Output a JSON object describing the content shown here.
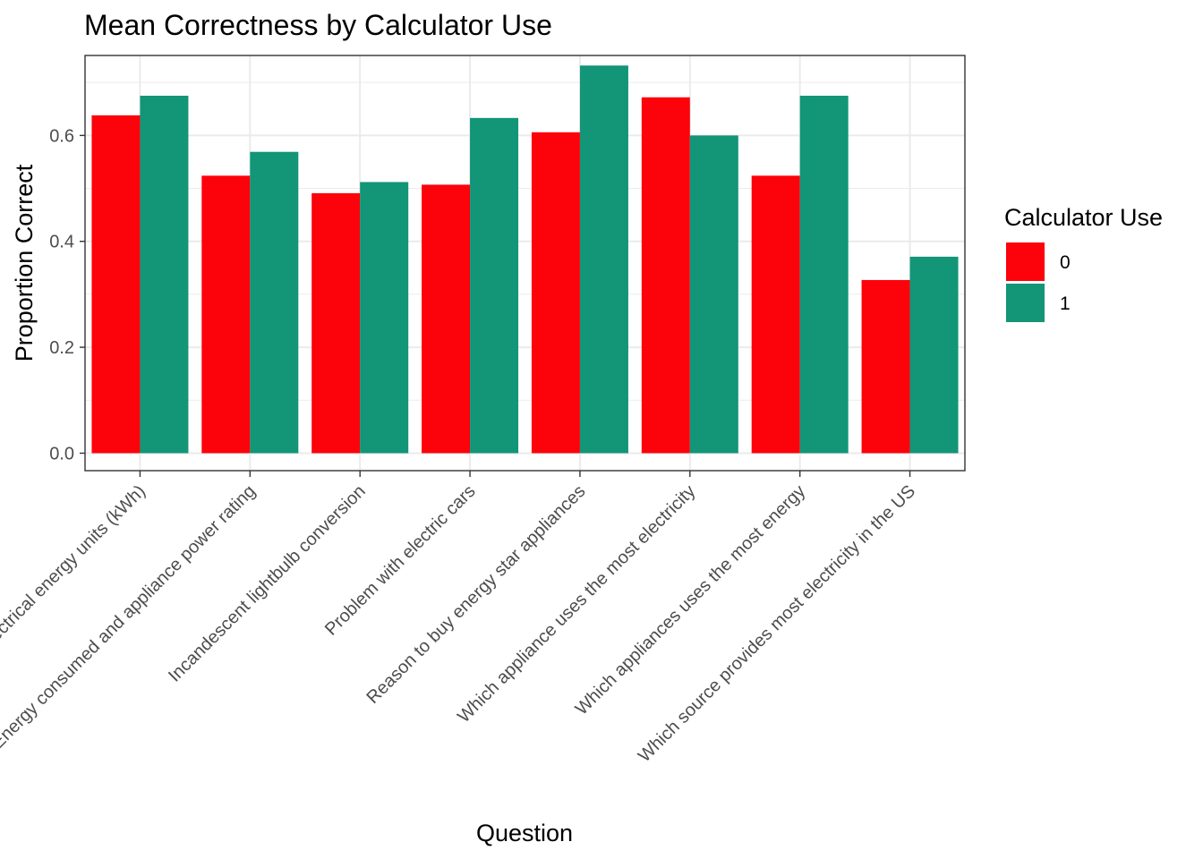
{
  "chart_data": {
    "type": "bar",
    "title": "Mean Correctness by Calculator Use",
    "xlabel": "Question",
    "ylabel": "Proportion Correct",
    "ylim": [
      -0.033,
      0.751
    ],
    "yticks": [
      "0.0",
      "0.2",
      "0.4",
      "0.6"
    ],
    "ytick_values": [
      0.0,
      0.2,
      0.4,
      0.6
    ],
    "grid": true,
    "legend_title": "Calculator Use",
    "legend_position": "right",
    "categories": [
      "Electrical energy units (kWh)",
      "Energy consumed and appliance power rating",
      "Incandescent lightbulb conversion",
      "Problem with electric cars",
      "Reason to buy energy star appliances",
      "Which appliance uses the most electricity",
      "Which appliances uses the most energy",
      "Which source provides most electricity in the US"
    ],
    "series": [
      {
        "name": "0",
        "color": "#fc020b",
        "values": [
          0.638,
          0.524,
          0.491,
          0.507,
          0.606,
          0.672,
          0.524,
          0.327
        ]
      },
      {
        "name": "1",
        "color": "#139577",
        "values": [
          0.675,
          0.569,
          0.512,
          0.633,
          0.732,
          0.6,
          0.675,
          0.371
        ]
      }
    ]
  }
}
